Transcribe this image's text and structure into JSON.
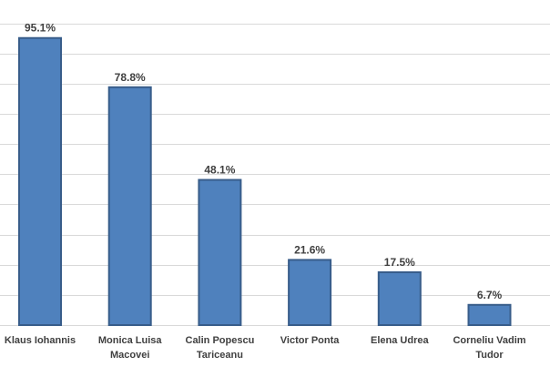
{
  "chart_data": {
    "type": "bar",
    "categories": [
      [
        "Klaus Iohannis"
      ],
      [
        "Monica Luisa",
        "Macovei"
      ],
      [
        "Calin Popescu",
        "Tariceanu"
      ],
      [
        "Victor Ponta"
      ],
      [
        "Elena Udrea"
      ],
      [
        "Corneliu Vadim",
        "Tudor"
      ]
    ],
    "values": [
      95.1,
      78.8,
      48.1,
      21.6,
      17.5,
      6.7
    ],
    "value_labels": [
      "95.1%",
      "78.8%",
      "48.1%",
      "21.6%",
      "17.5%",
      "6.7%"
    ],
    "title": "",
    "xlabel": "",
    "ylabel": "",
    "ylim": [
      0,
      100
    ],
    "grid": true,
    "bar_color": "#4f81bd",
    "bar_edge_color": "#385d8a"
  }
}
